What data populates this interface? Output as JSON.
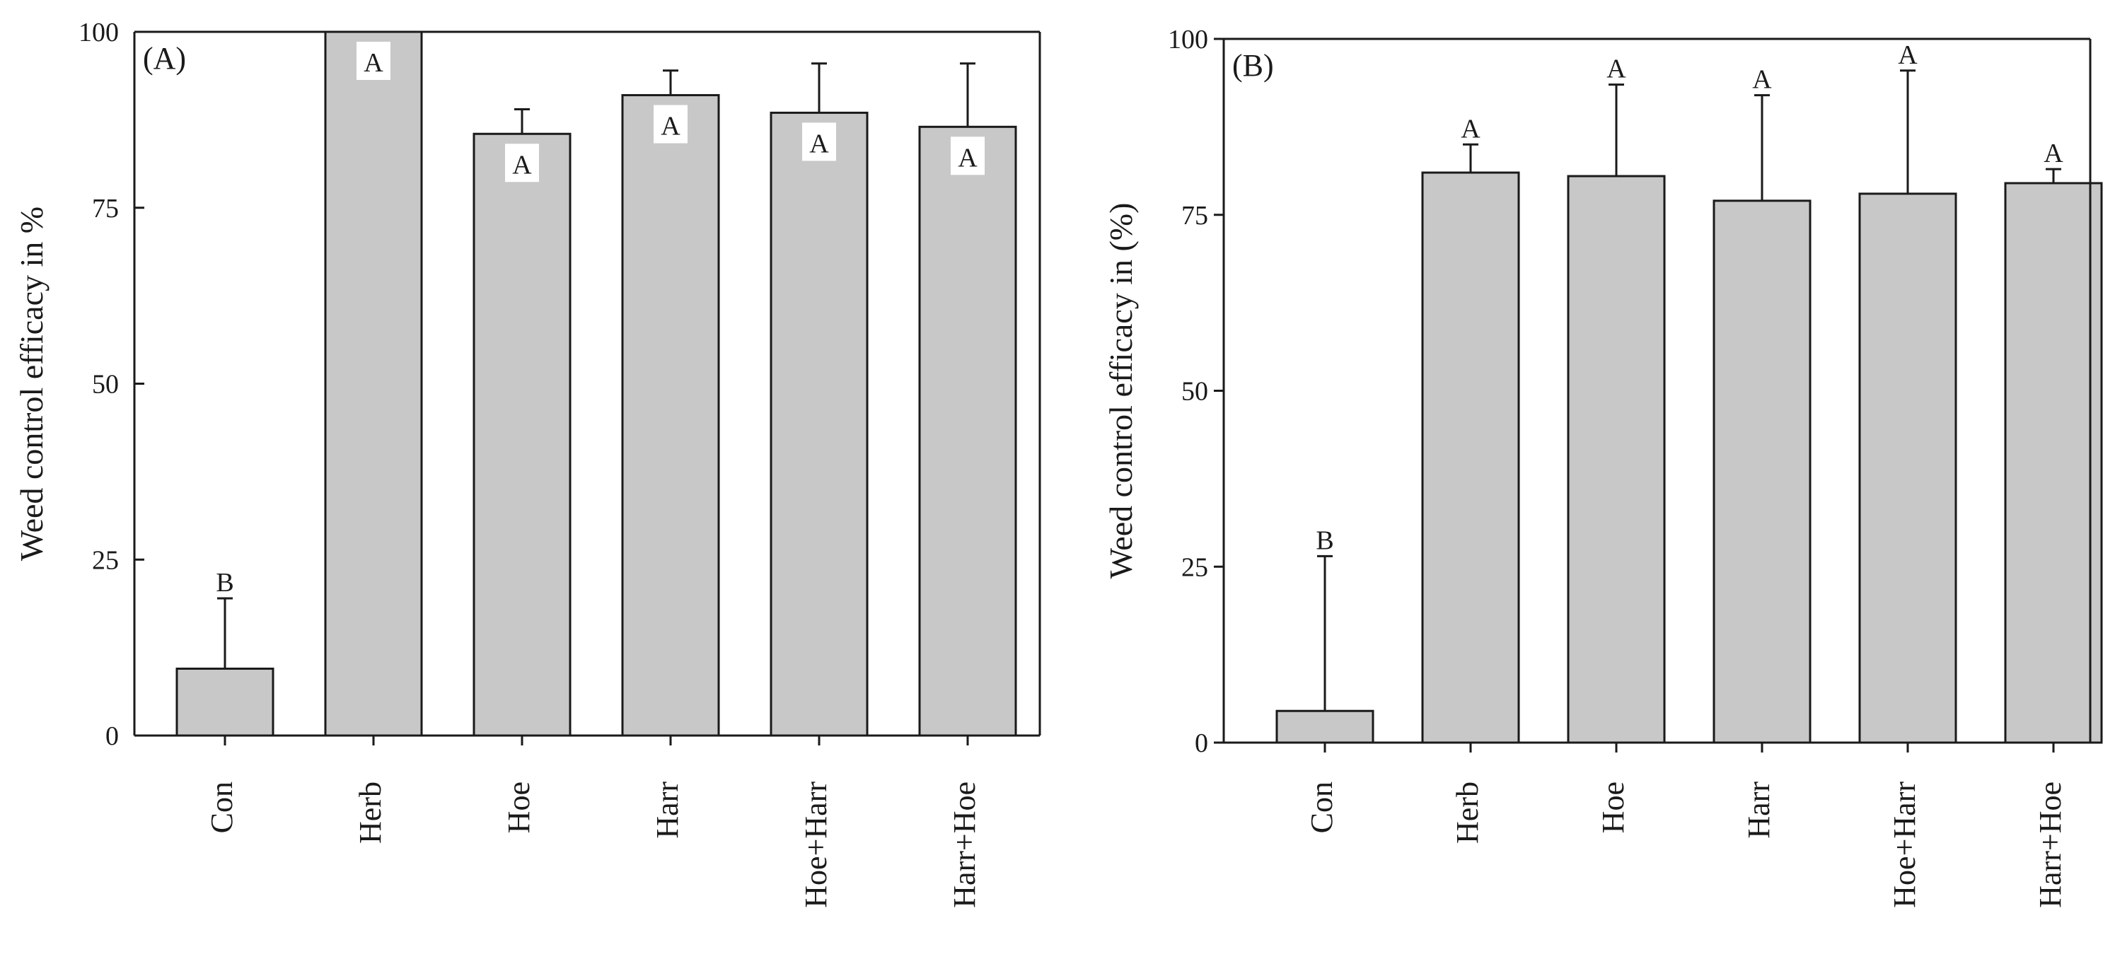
{
  "chart_data": [
    {
      "type": "bar",
      "panel_label": "(A)",
      "ylabel": "Weed control efficacy in %",
      "xlabel": "",
      "ylim": [
        0,
        100
      ],
      "yticks": [
        0,
        25,
        50,
        75,
        100
      ],
      "grid": false,
      "categories": [
        "Con",
        "Herb",
        "Hoe",
        "Harr",
        "Hoe+Harr",
        "Harr+Hoe"
      ],
      "values": [
        9.5,
        100,
        85.5,
        91,
        88.5,
        86.5
      ],
      "errors": [
        10,
        0,
        3.5,
        3.5,
        7,
        9
      ],
      "significance": [
        "B",
        "A",
        "A",
        "A",
        "A",
        "A"
      ],
      "significance_inside": [
        false,
        true,
        true,
        true,
        true,
        true
      ],
      "bar_color": "#c8c8c8"
    },
    {
      "type": "bar",
      "panel_label": "(B)",
      "ylabel": "Weed control efficacy in (%)",
      "xlabel": "",
      "ylim": [
        0,
        100
      ],
      "yticks": [
        0,
        25,
        50,
        75,
        100
      ],
      "grid": false,
      "categories": [
        "Con",
        "Herb",
        "Hoe",
        "Harr",
        "Hoe+Harr",
        "Harr+Hoe"
      ],
      "values": [
        4.5,
        81,
        80.5,
        77,
        78,
        79.5
      ],
      "errors": [
        22,
        4,
        13,
        15,
        17.5,
        2
      ],
      "significance": [
        "B",
        "A",
        "A",
        "A",
        "A",
        "A"
      ],
      "significance_inside": [
        false,
        false,
        false,
        false,
        false,
        false
      ],
      "bar_color": "#c8c8c8"
    }
  ]
}
